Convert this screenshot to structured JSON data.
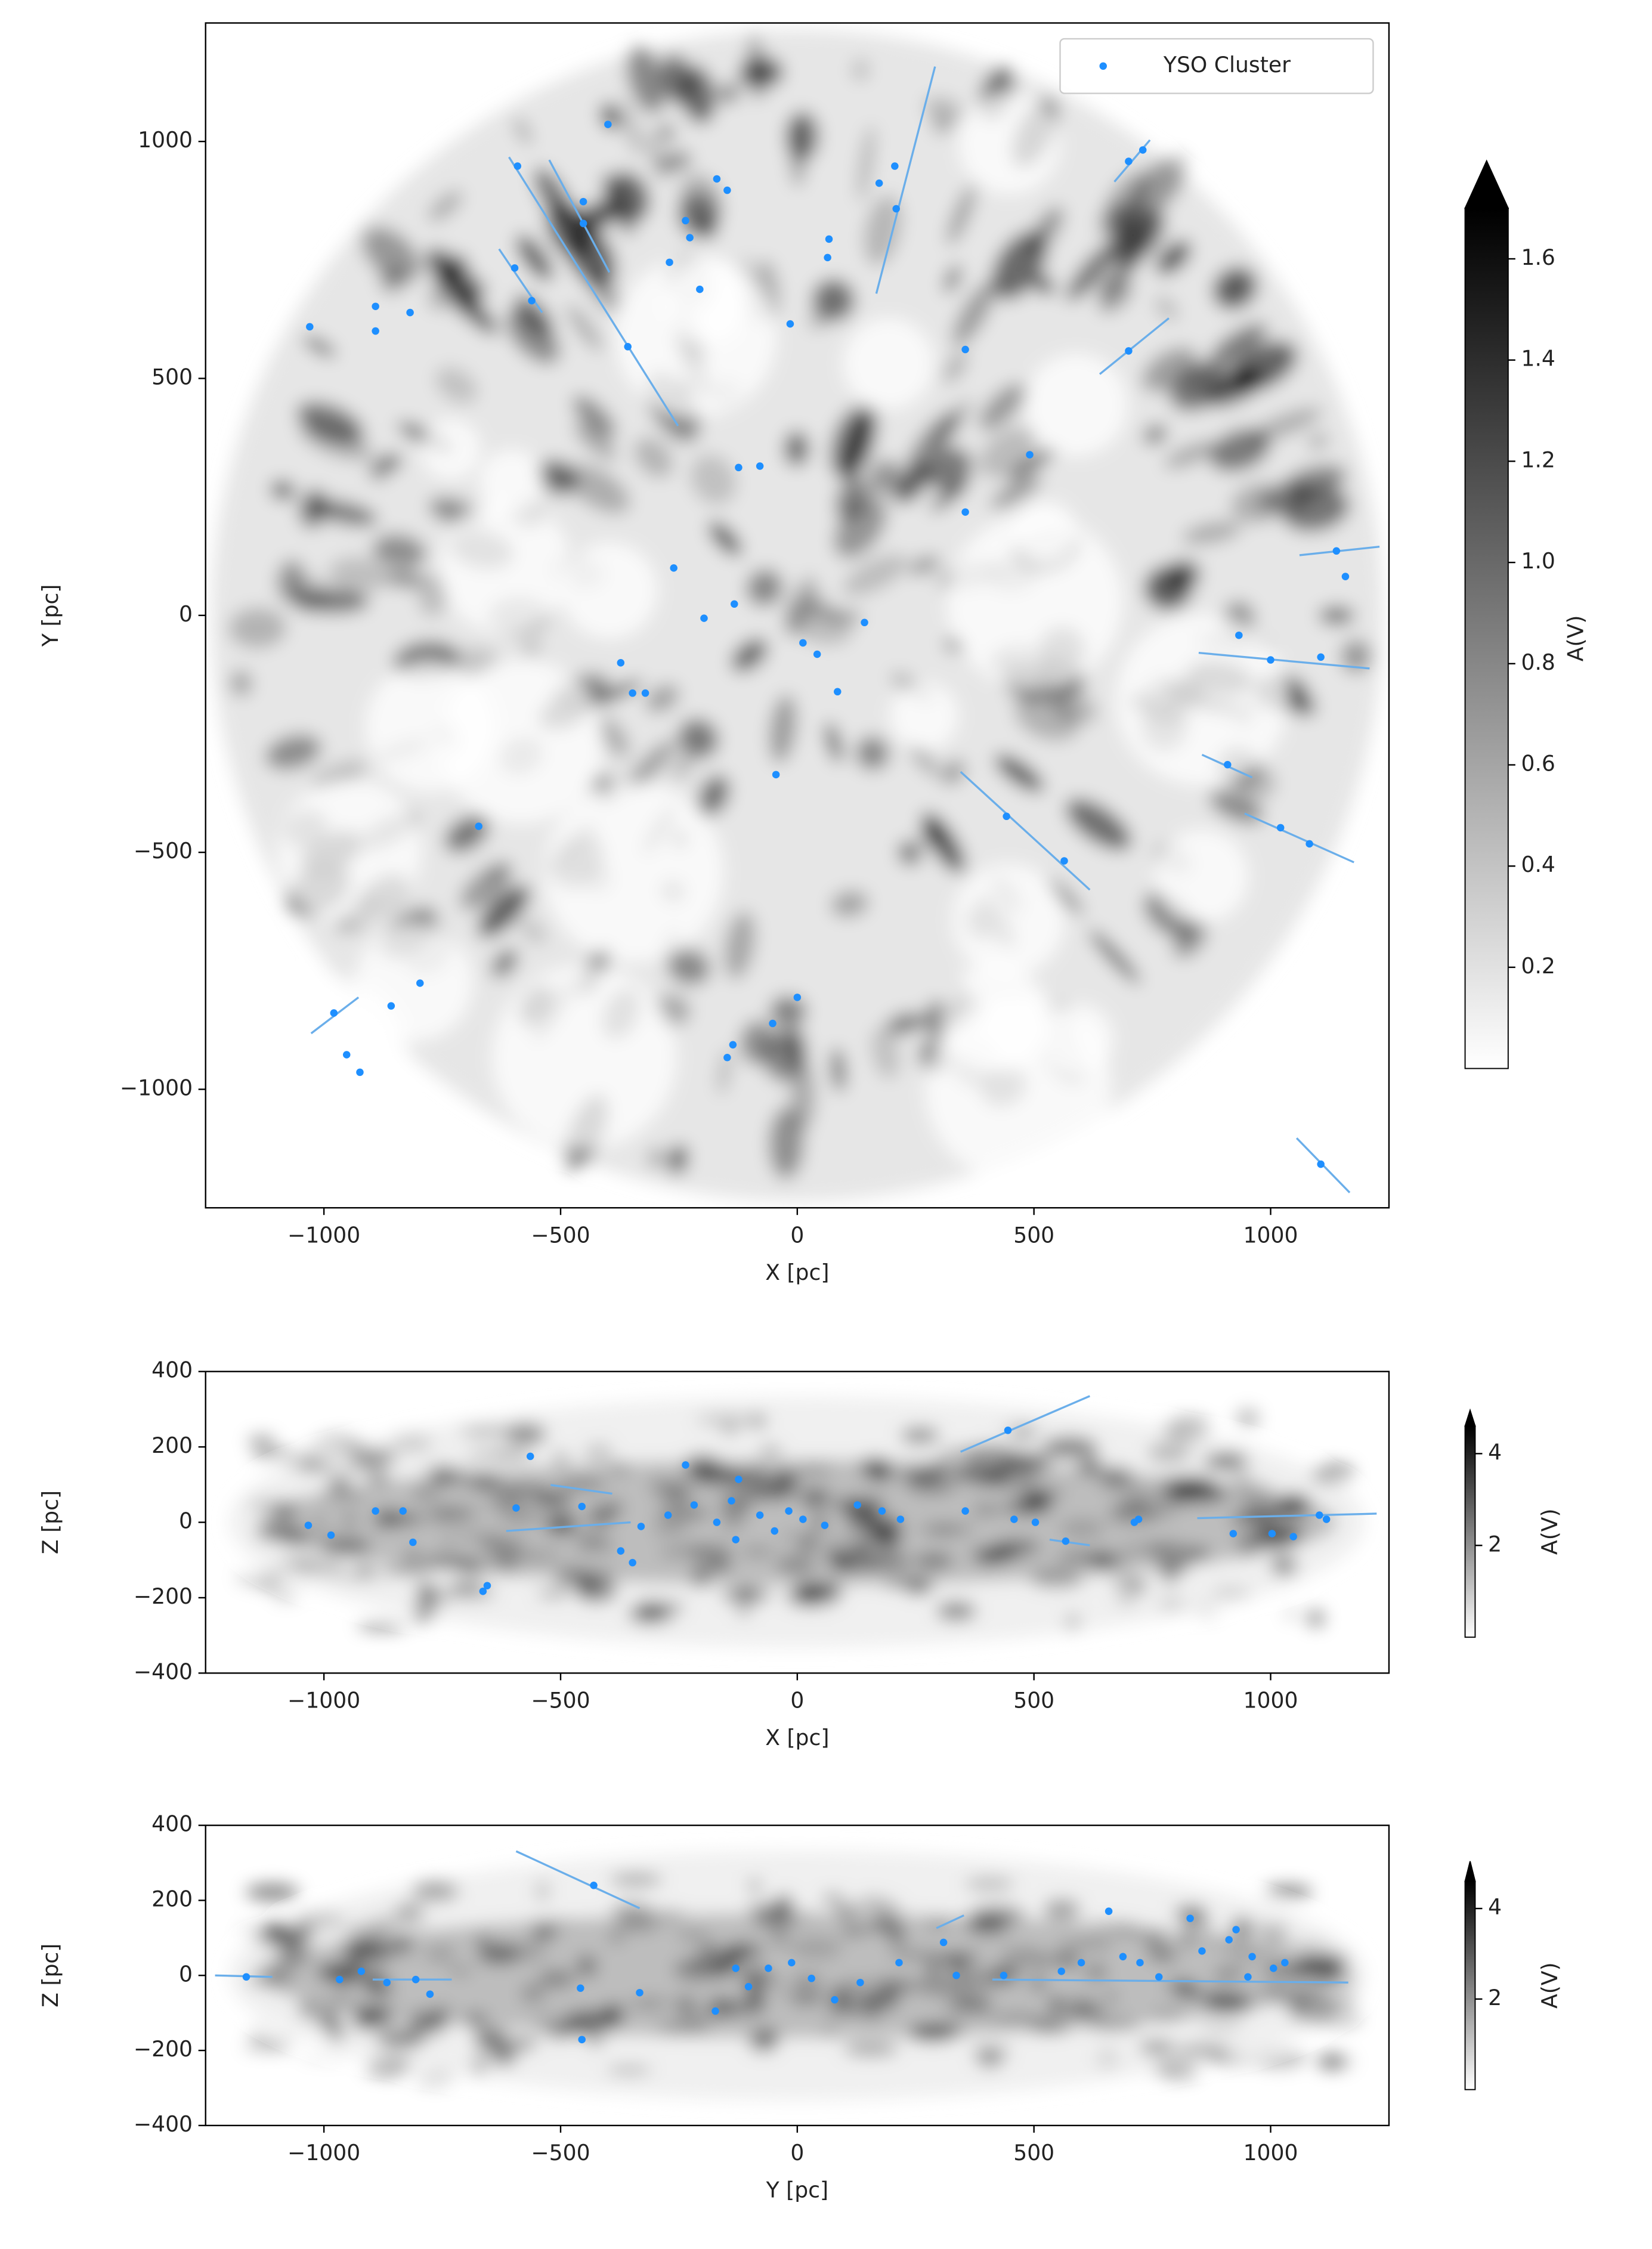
{
  "chart_data": [
    {
      "type": "scatter",
      "x_label": "X [pc]",
      "y_label": "Y [pc]",
      "xlim": [
        -1250,
        1250
      ],
      "ylim": [
        -1250,
        1250
      ],
      "xticks": [
        {
          "value": -1000,
          "label": "−1000"
        },
        {
          "value": -500,
          "label": "−500"
        },
        0,
        500,
        1000
      ],
      "yticks": [
        {
          "value": -1000,
          "label": "−1000"
        },
        {
          "value": -500,
          "label": "−500"
        },
        0,
        500,
        1000
      ],
      "legend": "upper right",
      "map": "disk",
      "series": [
        {
          "name": "YSO Cluster",
          "color": "#1e8fff",
          "x": [
            -591,
            -452,
            -452,
            -400,
            -597,
            -561,
            -891,
            -891,
            -818,
            -1030,
            -358,
            -236,
            -227,
            -270,
            -206,
            -170,
            -148,
            -15,
            64,
            67,
            173,
            209,
            206,
            700,
            730,
            700,
            355,
            -124,
            -79,
            491,
            355,
            1139,
            1158,
            933,
            1000,
            1106,
            909,
            1021,
            1082,
            442,
            564,
            1106,
            -261,
            -197,
            -133,
            12,
            42,
            142,
            85,
            -373,
            -348,
            -321,
            -45,
            -673,
            -797,
            -858,
            -979,
            -952,
            -924,
            -148,
            -136,
            -52,
            0
          ],
          "values": [
            948,
            873,
            827,
            1036,
            733,
            664,
            652,
            600,
            639,
            609,
            567,
            833,
            797,
            745,
            688,
            921,
            897,
            615,
            755,
            794,
            912,
            858,
            948,
            958,
            982,
            558,
            561,
            312,
            315,
            339,
            218,
            136,
            82,
            -42,
            -94,
            -88,
            -315,
            -448,
            -482,
            -424,
            -518,
            -1158,
            100,
            -6,
            24,
            -58,
            -82,
            -15,
            -161,
            -100,
            -164,
            -164,
            -336,
            -445,
            -776,
            -824,
            -839,
            -927,
            -964,
            -933,
            -906,
            -861,
            -806
          ]
        }
      ],
      "error_segments": [
        [
          -524,
          961,
          -397,
          724
        ],
        [
          -609,
          967,
          -252,
          400
        ],
        [
          167,
          679,
          291,
          1158
        ],
        [
          -1027,
          -882,
          -927,
          -806
        ],
        [
          345,
          -330,
          618,
          -579
        ],
        [
          848,
          -79,
          1209,
          -112
        ],
        [
          945,
          -418,
          1176,
          -521
        ],
        [
          1055,
          -1103,
          1167,
          -1218
        ],
        [
          639,
          509,
          785,
          627
        ],
        [
          1061,
          127,
          1230,
          145
        ],
        [
          855,
          -294,
          961,
          -342
        ],
        [
          670,
          915,
          745,
          1003
        ],
        [
          -630,
          773,
          -539,
          639
        ]
      ],
      "error_color": "#6aaeea",
      "colorbar": {
        "label": "A(V)",
        "lim": [
          0,
          1.7
        ],
        "extend": "max",
        "colors": [
          "#ffffff",
          "#000000"
        ],
        "ticks": [
          0.2,
          0.4,
          0.6,
          0.8,
          {
            "value": 1,
            "label": "1.0"
          },
          1.2,
          1.4,
          1.6
        ]
      }
    },
    {
      "type": "scatter",
      "x_label": "X [pc]",
      "y_label": "Z [pc]",
      "xlim": [
        -1250,
        1250
      ],
      "ylim": [
        -400,
        400
      ],
      "xticks": [
        {
          "value": -1000,
          "label": "−1000"
        },
        {
          "value": -500,
          "label": "−500"
        },
        0,
        500,
        1000
      ],
      "yticks": [
        {
          "value": -400,
          "label": "−400"
        },
        {
          "value": -200,
          "label": "−200"
        },
        0,
        200,
        400
      ],
      "map": "slab",
      "series": [
        {
          "color": "#1e8fff",
          "x": [
            445,
            -236,
            -564,
            -655,
            -664,
            -1033,
            -985,
            -891,
            -812,
            -833,
            -455,
            -373,
            -348,
            -273,
            -218,
            -170,
            -139,
            -124,
            -130,
            -79,
            -18,
            58,
            127,
            179,
            218,
            355,
            458,
            503,
            567,
            712,
            721,
            1103,
            1118,
            1003,
            921,
            1048,
            -48,
            12,
            -330,
            -594
          ],
          "values": [
            244,
            152,
            175,
            -168,
            -183,
            -8,
            -34,
            30,
            -53,
            30,
            42,
            -76,
            -107,
            19,
            46,
            0,
            57,
            114,
            -46,
            19,
            30,
            -8,
            46,
            30,
            8,
            30,
            8,
            0,
            -50,
            0,
            8,
            19,
            8,
            -30,
            -30,
            -38,
            -23,
            8,
            -11,
            38
          ]
        }
      ],
      "error_segments": [
        [
          345,
          187,
          618,
          335
        ],
        [
          -521,
          99,
          -391,
          76
        ],
        [
          -615,
          -23,
          -352,
          0
        ],
        [
          845,
          11,
          1224,
          23
        ],
        [
          533,
          -46,
          618,
          -61
        ]
      ],
      "error_color": "#6aaeea",
      "colorbar": {
        "label": "A(V)",
        "lim": [
          0,
          4.6
        ],
        "extend": "max",
        "colors": [
          "#ffffff",
          "#000000"
        ],
        "ticks": [
          2,
          4
        ]
      }
    },
    {
      "type": "scatter",
      "x_label": "Y [pc]",
      "y_label": "Z [pc]",
      "xlim": [
        -1250,
        1250
      ],
      "ylim": [
        -400,
        400
      ],
      "xticks": [
        {
          "value": -1000,
          "label": "−1000"
        },
        {
          "value": -500,
          "label": "−500"
        },
        0,
        500,
        1000
      ],
      "yticks": [
        {
          "value": -400,
          "label": "−400"
        },
        {
          "value": -200,
          "label": "−200"
        },
        0,
        200,
        400
      ],
      "map": "slab",
      "series": [
        {
          "color": "#1e8fff",
          "x": [
            -430,
            -1164,
            -967,
            -921,
            -867,
            -806,
            -776,
            -455,
            -458,
            -333,
            -173,
            -130,
            -103,
            -61,
            -12,
            30,
            79,
            133,
            215,
            309,
            336,
            558,
            658,
            600,
            688,
            724,
            764,
            830,
            912,
            855,
            961,
            1006,
            952,
            1030,
            927,
            436
          ],
          "values": [
            240,
            -4,
            -11,
            11,
            -19,
            -11,
            -50,
            -171,
            -34,
            -46,
            -95,
            19,
            -30,
            19,
            34,
            -8,
            -65,
            -19,
            34,
            88,
            0,
            11,
            171,
            34,
            50,
            34,
            -4,
            152,
            95,
            65,
            50,
            19,
            -4,
            34,
            122,
            0
          ]
        }
      ],
      "error_segments": [
        [
          -594,
          331,
          -333,
          179
        ],
        [
          -1230,
          0,
          -1109,
          -4
        ],
        [
          412,
          -11,
          1164,
          -19
        ],
        [
          -897,
          -11,
          -730,
          -11
        ],
        [
          294,
          126,
          352,
          160
        ]
      ],
      "error_color": "#6aaeea",
      "colorbar": {
        "label": "A(V)",
        "lim": [
          0,
          4.6
        ],
        "extend": "max",
        "colors": [
          "#ffffff",
          "#000000"
        ],
        "ticks": [
          2,
          4
        ]
      }
    }
  ]
}
